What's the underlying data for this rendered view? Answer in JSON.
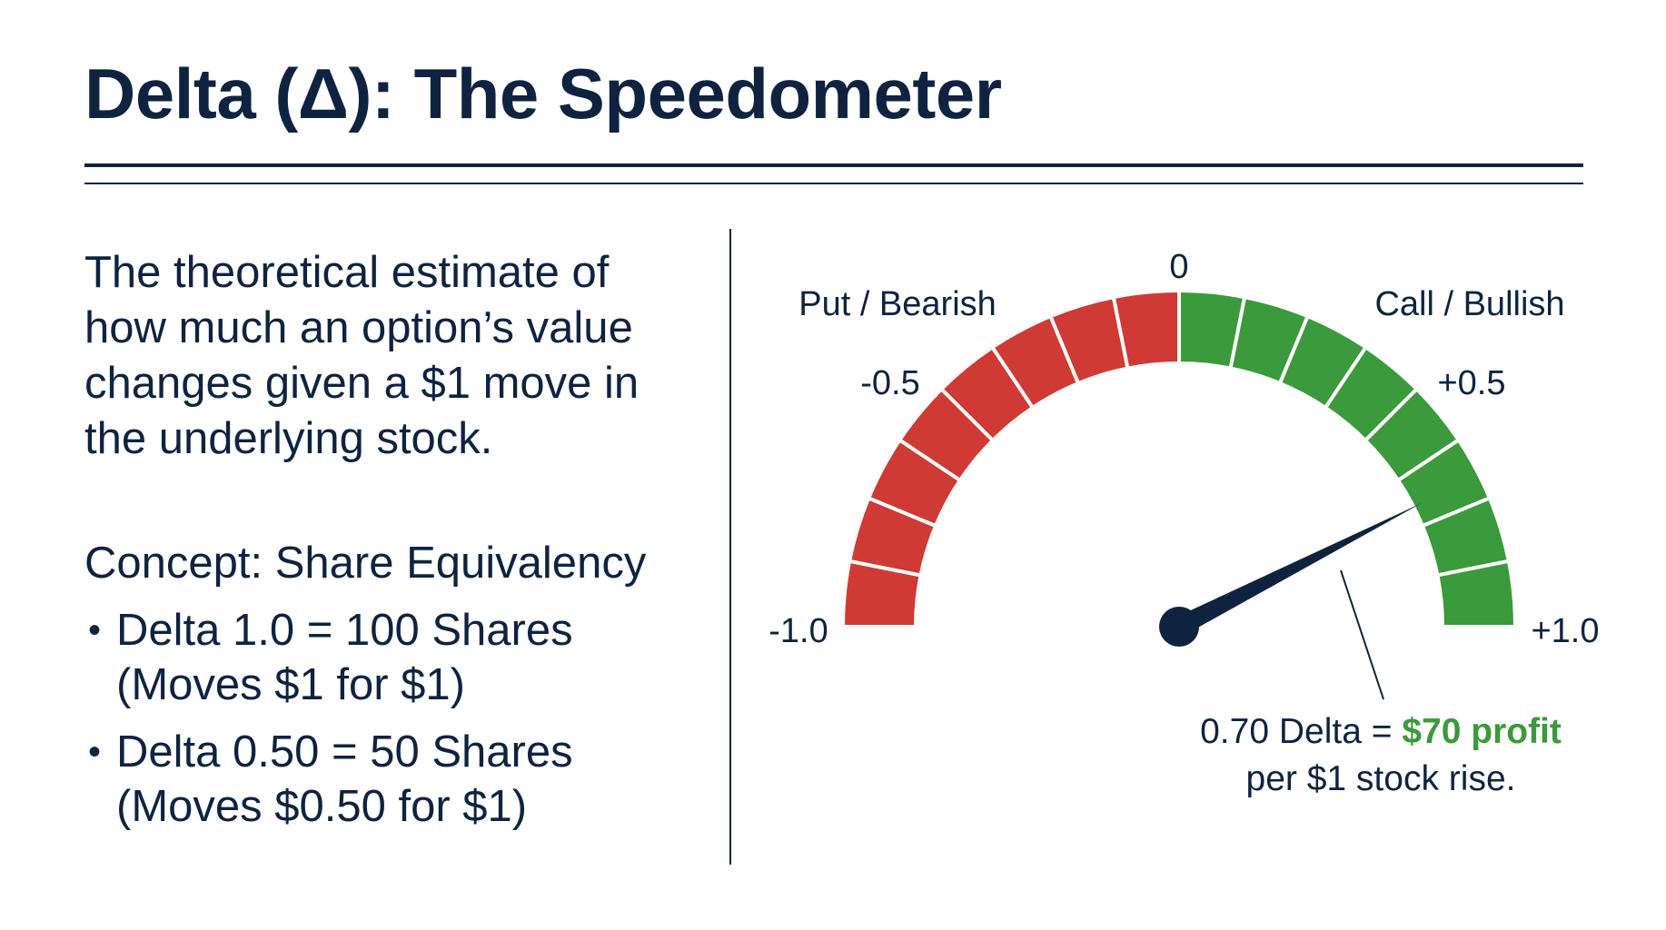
{
  "title": "Delta (Δ): The Speedometer",
  "definition": "The theoretical estimate of how much an option’s value changes given a $1 move in the underlying stock.",
  "concept": {
    "heading": "Concept: Share Equivalency",
    "bullets": [
      {
        "line1": "Delta 1.0 = 100 Shares",
        "line2": "(Moves $1 for $1)"
      },
      {
        "line1": "Delta 0.50 = 50 Shares",
        "line2": "(Moves $0.50 for $1)"
      }
    ]
  },
  "gauge": {
    "min_label": "-1.0",
    "mid_neg_label": "-0.5",
    "zero_label": "0",
    "mid_pos_label": "+0.5",
    "max_label": "+1.0",
    "left_zone_label": "Put / Bearish",
    "right_zone_label": "Call / Bullish",
    "min": -1.0,
    "max": 1.0,
    "segments_per_side": 8,
    "needle_value": 0.7,
    "negative_color": "#d03a34",
    "positive_color": "#3b9a3b",
    "needle_color": "#0f2340"
  },
  "callout": {
    "prefix": "0.70 Delta = ",
    "highlight": "$70 profit",
    "suffix": "per $1 stock rise."
  }
}
